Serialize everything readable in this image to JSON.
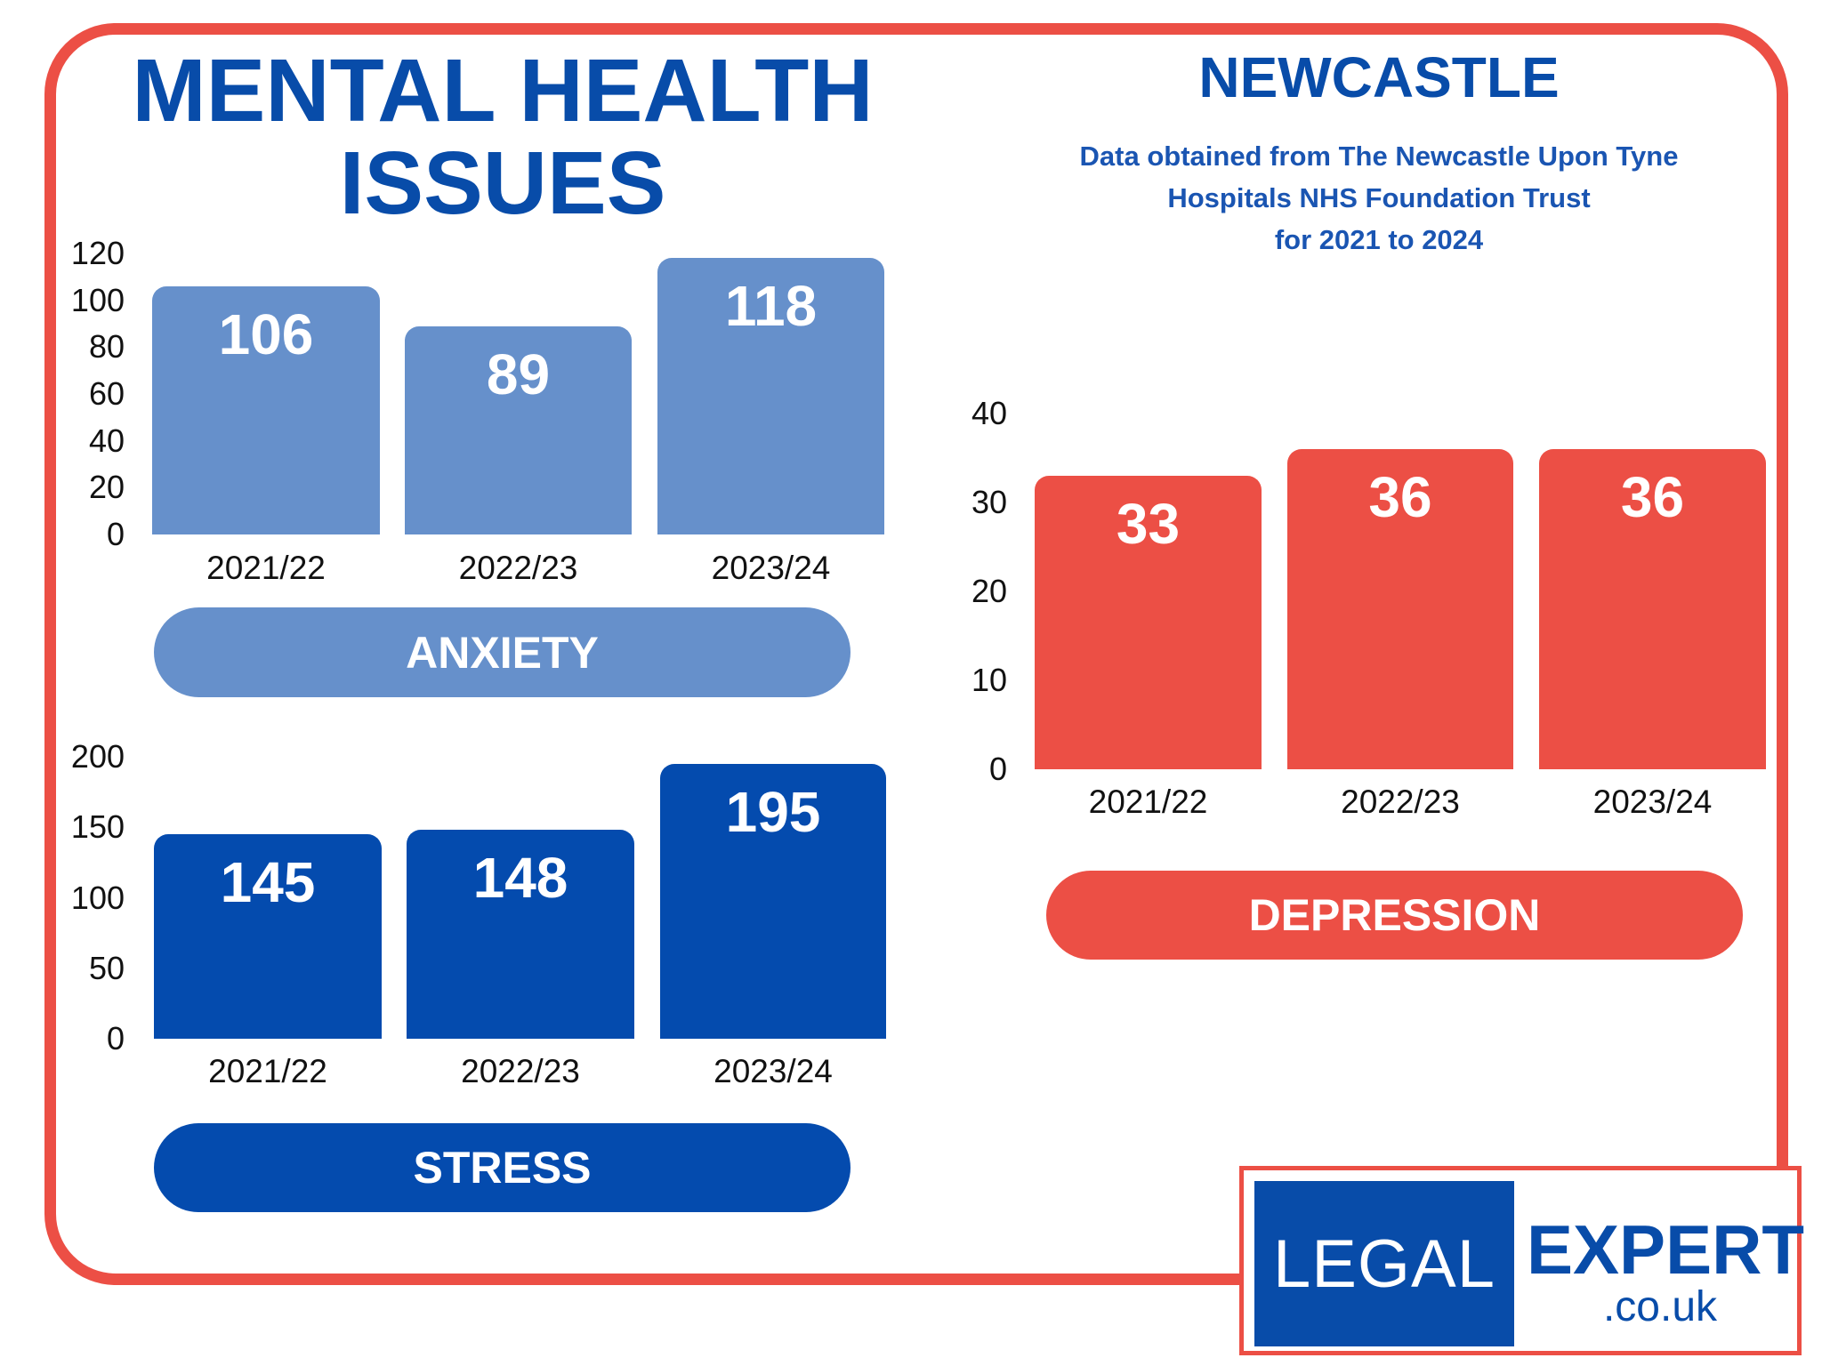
{
  "header": {
    "title_line1": "MENTAL HEALTH",
    "title_line2": "ISSUES",
    "city": "NEWCASTLE",
    "subtitle_lines": [
      "Data obtained from The Newcastle Upon Tyne",
      "Hospitals NHS Foundation Trust",
      "for 2021 to 2024"
    ]
  },
  "colors": {
    "anxiety": "#6690CB",
    "stress": "#044BAE",
    "depression": "#EC4F45",
    "border": "#EC4F45",
    "title": "#084CA9"
  },
  "logo": {
    "left": "LEGAL",
    "right": "EXPERT",
    "domain": ".co.uk"
  },
  "chart_data": [
    {
      "type": "bar",
      "title": "ANXIETY",
      "categories": [
        "2021/22",
        "2022/23",
        "2023/24"
      ],
      "values": [
        106,
        89,
        118
      ],
      "ylim": [
        0,
        120
      ],
      "yticks": [
        0,
        20,
        40,
        60,
        80,
        100,
        120
      ],
      "grid": false
    },
    {
      "type": "bar",
      "title": "STRESS",
      "categories": [
        "2021/22",
        "2022/23",
        "2023/24"
      ],
      "values": [
        145,
        148,
        195
      ],
      "ylim": [
        0,
        200
      ],
      "yticks": [
        0,
        50,
        100,
        150,
        200
      ],
      "grid": false
    },
    {
      "type": "bar",
      "title": "DEPRESSION",
      "categories": [
        "2021/22",
        "2022/23",
        "2023/24"
      ],
      "values": [
        33,
        36,
        36
      ],
      "ylim": [
        0,
        40
      ],
      "yticks": [
        0,
        10,
        20,
        30,
        40
      ],
      "grid": false
    }
  ]
}
